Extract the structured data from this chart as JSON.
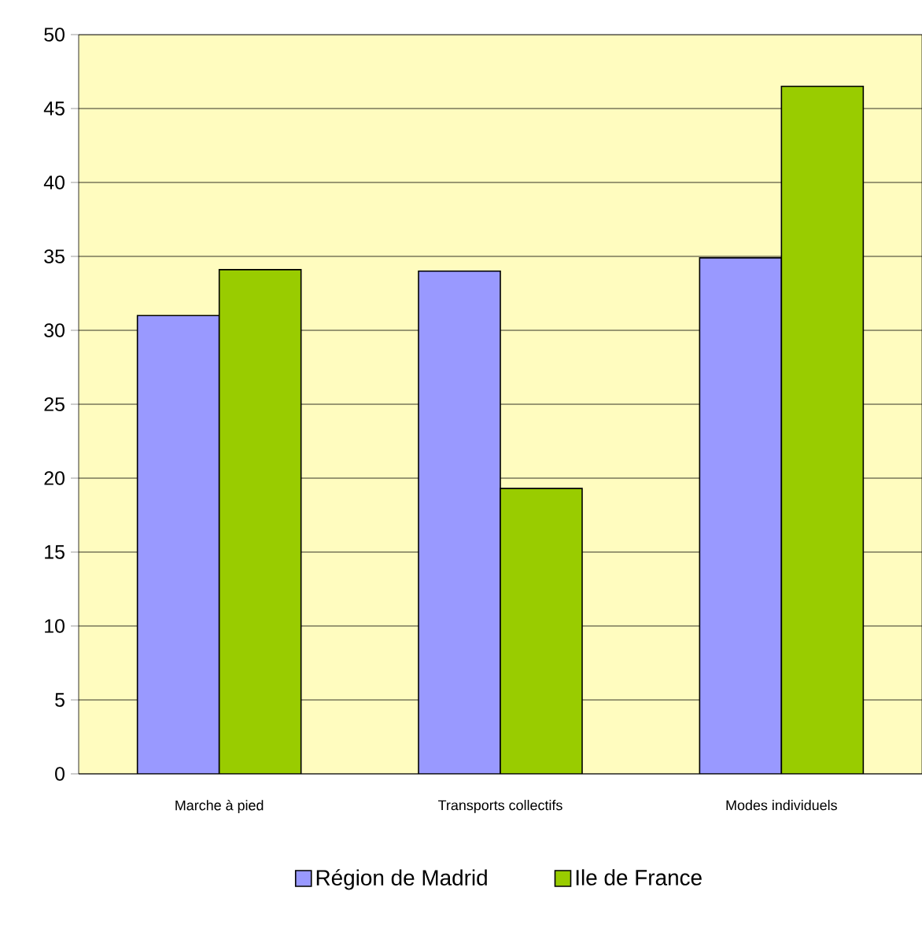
{
  "chart_data": {
    "type": "bar",
    "categories": [
      "Marche à pied",
      "Transports collectifs",
      "Modes individuels"
    ],
    "series": [
      {
        "name": "Région de Madrid",
        "color": "#9999ff",
        "values": [
          31,
          34,
          34.9
        ]
      },
      {
        "name": "Ile de France",
        "color": "#99cc00",
        "values": [
          34.1,
          19.3,
          46.5
        ]
      }
    ],
    "ylim": [
      0,
      50
    ],
    "yticks": [
      0,
      5,
      10,
      15,
      20,
      25,
      30,
      35,
      40,
      45,
      50
    ],
    "grid": "y",
    "legend": "bottom"
  }
}
